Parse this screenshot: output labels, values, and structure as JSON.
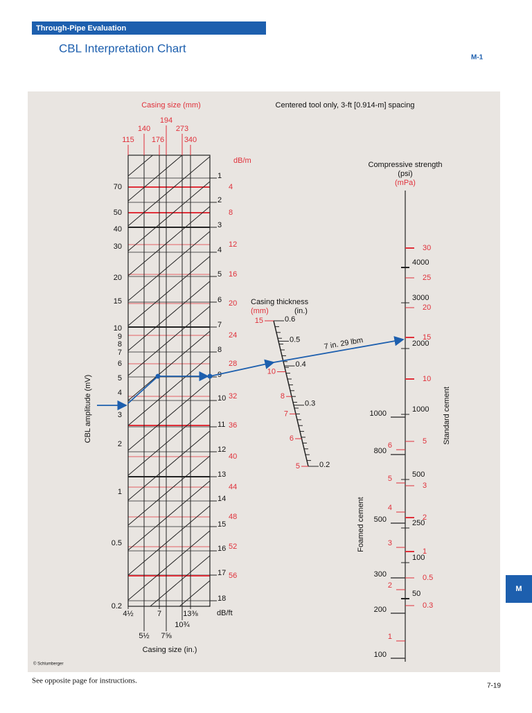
{
  "header": {
    "section": "Through-Pipe Evaluation",
    "title": "CBL Interpretation Chart",
    "code": "M-1"
  },
  "nomograph": {
    "note": "Centered tool only, 3-ft [0.914-m] spacing",
    "casing_size_mm": {
      "label": "Casing size (mm)",
      "ticks": [
        "115",
        "140",
        "176",
        "194",
        "273",
        "340"
      ]
    },
    "casing_size_in": {
      "label": "Casing size (in.)",
      "ticks": [
        "4½",
        "5½",
        "7",
        "7⅝",
        "10¾",
        "13⅜"
      ]
    },
    "amplitude": {
      "label": "CBL amplitude (mV)",
      "ticks": [
        "70",
        "50",
        "40",
        "30",
        "20",
        "15",
        "10",
        "9",
        "8",
        "7",
        "6",
        "5",
        "4",
        "3",
        "2",
        "1",
        "0.5",
        "0.2"
      ]
    },
    "attenuation_db_ft": {
      "unit": "dB/ft",
      "ticks": [
        "1",
        "2",
        "3",
        "4",
        "5",
        "6",
        "7",
        "8",
        "9",
        "10",
        "11",
        "12",
        "13",
        "14",
        "15",
        "16",
        "17",
        "18"
      ]
    },
    "attenuation_db_m": {
      "unit": "dB/m",
      "ticks": [
        "4",
        "8",
        "12",
        "16",
        "20",
        "24",
        "28",
        "32",
        "36",
        "40",
        "44",
        "48",
        "52",
        "56"
      ]
    },
    "casing_thickness": {
      "label": "Casing thickness",
      "mm_unit": "(mm)",
      "in_unit": "(in.)",
      "mm_ticks": [
        "15",
        "10",
        "8",
        "7",
        "6",
        "5"
      ],
      "in_ticks": [
        "0.6",
        "0.5",
        "0.4",
        "0.3",
        "0.2"
      ]
    },
    "example": "7 in. 29 lbm",
    "strength": {
      "label": "Compressive strength",
      "psi_unit": "(psi)",
      "mpa_unit": "(mPa)",
      "standard_label": "Standard cement",
      "standard_psi": [
        "4000",
        "3000",
        "2000",
        "1000",
        "500",
        "250",
        "100",
        "50"
      ],
      "standard_mpa": [
        "30",
        "25",
        "20",
        "15",
        "10",
        "5",
        "3",
        "2",
        "1",
        "0.5",
        "0.3"
      ],
      "foamed_label": "Foamed cement",
      "foamed_psi": [
        "1000",
        "800",
        "500",
        "300",
        "200",
        "100"
      ],
      "foamed_mpa": [
        "6",
        "5",
        "4",
        "3",
        "2",
        "1"
      ]
    }
  },
  "copyright": "© Schlumberger",
  "footer": {
    "note": "See opposite page for instructions.",
    "page": "7-19"
  },
  "tab": "M"
}
